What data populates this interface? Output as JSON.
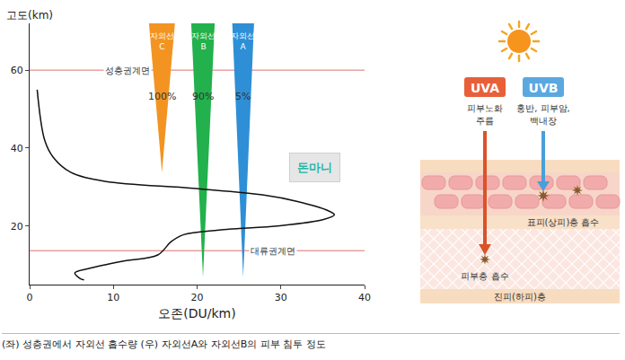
{
  "chart_data": {
    "type": "line",
    "xlabel": "오존(DU/km)",
    "ylabel": "고도(km)",
    "xlim": [
      0,
      40
    ],
    "xticks": [
      0,
      10,
      20,
      30,
      40
    ],
    "ylim": [
      5,
      72
    ],
    "yticks": [
      20,
      40,
      60
    ],
    "grid": false,
    "series": [
      {
        "color": "#111111",
        "x": [
          0.9,
          1.8,
          2.8,
          4.9,
          9.0,
          19.5,
          27.8,
          32.0,
          35.6,
          36.4,
          35.1,
          29.9,
          22.6,
          18.4,
          16.9,
          15.3,
          11.1,
          7.0,
          5.4,
          6.0,
          6.5
        ],
        "y": [
          55.0,
          42.0,
          37.7,
          33.8,
          31.5,
          29.7,
          28.0,
          26.3,
          24.0,
          22.9,
          21.7,
          20.1,
          19.0,
          17.8,
          16.0,
          12.6,
          11.0,
          9.1,
          8.0,
          6.6,
          6.2
        ]
      }
    ],
    "hlines": [
      {
        "value": 60,
        "label": "성층권계면",
        "color": "#e07070"
      },
      {
        "value": 13.7,
        "label": "대류권계면",
        "color": "#e07070"
      }
    ],
    "bands": [
      {
        "name": "자외선 C",
        "label": "100%",
        "color": "#f39422",
        "x_center": 15.8,
        "width": 3.1,
        "top": 72,
        "bottom": 33.8
      },
      {
        "name": "자외선 B",
        "label": "90%",
        "color": "#22b14c",
        "x_center": 20.7,
        "width": 2.8,
        "top": 72,
        "bottom": 6.9
      },
      {
        "name": "자외선 A",
        "label": "5%",
        "color": "#2e8fd6",
        "x_center": 25.5,
        "width": 2.6,
        "top": 72,
        "bottom": 6.9
      }
    ],
    "watermark": "돈마니"
  },
  "diagram": {
    "uva": {
      "label": "UVA",
      "color": "#e8603a",
      "effects": [
        "피부노화",
        "주름"
      ],
      "absorbed": "피부층 흡수"
    },
    "uvb": {
      "label": "UVB",
      "color": "#5aa8e0",
      "effects": [
        "홍반, 피부암,",
        "백내장"
      ],
      "absorbed": "표피(상피)층 흡수"
    },
    "bottom_layer": "진피(하피)층"
  },
  "caption": "(좌) 성층권에서 자외선 흡수량 (우) 자외선A와 자외선B의 피부 침투 정도"
}
